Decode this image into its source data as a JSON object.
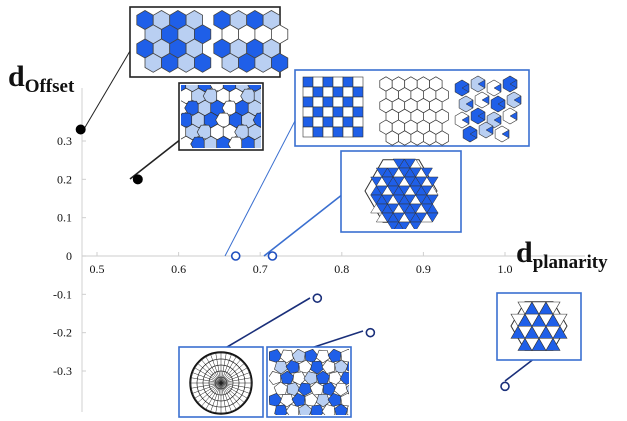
{
  "chart_data": {
    "type": "scatter",
    "x_axis": {
      "label_main": "d",
      "label_sub": "planarity",
      "ticks": [
        "0.5",
        "0.6",
        "0.7",
        "0.8",
        "0.9",
        "1.0"
      ],
      "tick_values": [
        0.5,
        0.6,
        0.7,
        0.8,
        0.9,
        1.0
      ],
      "xlim": [
        0.48,
        1.02
      ]
    },
    "y_axis": {
      "label_main": "d",
      "label_sub": "Offset",
      "ticks": [
        "0.3",
        "0.2",
        "0.1",
        "0",
        "-0.1",
        "-0.2",
        "-0.3"
      ],
      "tick_values": [
        0.3,
        0.2,
        0.1,
        0,
        -0.1,
        -0.2,
        -0.3
      ],
      "ylim": [
        -0.36,
        0.38
      ]
    },
    "grid": false,
    "series": [
      {
        "marker": "filled",
        "color": "#000000",
        "points": [
          {
            "x": 0.48,
            "y": 0.33,
            "inset": "hex-offset-pair"
          },
          {
            "x": 0.55,
            "y": 0.2,
            "inset": "pentagon-tiling"
          }
        ]
      },
      {
        "marker": "open",
        "color": "#1f4fbf",
        "points": [
          {
            "x": 0.67,
            "y": 0.0,
            "inset": "square-hex-prism-trio"
          },
          {
            "x": 0.715,
            "y": 0.0,
            "inset": "triangle-hexagon-tiling"
          }
        ]
      },
      {
        "marker": "open",
        "color": "#1a2f7a",
        "points": [
          {
            "x": 0.77,
            "y": -0.11,
            "inset": "circular-mesh"
          },
          {
            "x": 0.835,
            "y": -0.2,
            "inset": "pentagon-cluster"
          },
          {
            "x": 1.0,
            "y": -0.34,
            "inset": "triangle-hexagon"
          }
        ]
      }
    ],
    "colors": {
      "fill_blue": "#1f5fe8",
      "light_blue": "#b9cff2",
      "frame_blue": "#3a6fd0",
      "frame_dark": "#222222"
    }
  }
}
